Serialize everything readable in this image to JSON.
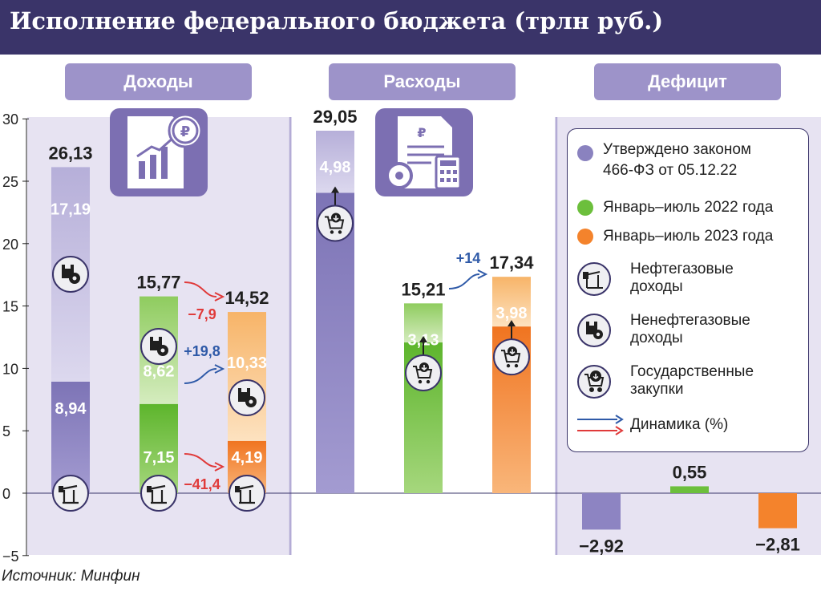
{
  "title": "Исполнение федерального бюджета (трлн руб.)",
  "sections": [
    {
      "label": "Доходы",
      "icon": "revenue-chart-icon"
    },
    {
      "label": "Расходы",
      "icon": "budget-calculator-icon"
    },
    {
      "label": "Дефицит"
    }
  ],
  "legend": {
    "law": "Утверждено законом 466-ФЗ от 05.12.22",
    "law_line1": "Утверждено законом",
    "law_line2": "466-ФЗ от 05.12.22",
    "y2022": "Январь–июль 2022 года",
    "y2023": "Январь–июль 2023 года",
    "oil_gas_line1": "Нефтегазовые",
    "oil_gas_line2": "доходы",
    "non_oil_line1": "Ненефтегазовые",
    "non_oil_line2": "доходы",
    "procurement_line1": "Государственные",
    "procurement_line2": "закупки",
    "dynamics": "Динамика (%)"
  },
  "source": "Источник: Минфин",
  "colors": {
    "law_dark": "#8a82bf",
    "law_light": "#c9c3e3",
    "g2022_dark": "#6cbf3c",
    "g2022_light": "#c4e3a5",
    "o2023_dark": "#f4832c",
    "o2023_light": "#f9c78e",
    "band": "#e7e3f2",
    "navy": "#3a3469",
    "arrow_up": "#2f5aa8",
    "arrow_down": "#e03a3a"
  },
  "chart_data": {
    "type": "bar",
    "y_axis": {
      "min": -5,
      "max": 30,
      "ticks": [
        30,
        25,
        20,
        15,
        10,
        5,
        0,
        -5
      ]
    },
    "groups": [
      {
        "name": "Доходы",
        "bars": [
          {
            "series": "law",
            "total": 26.13,
            "oil_gas": 8.94,
            "non_oil_gas": 17.19
          },
          {
            "series": "2022",
            "total": 15.77,
            "oil_gas": 7.15,
            "non_oil_gas": 8.62
          },
          {
            "series": "2023",
            "total": 14.52,
            "oil_gas": 4.19,
            "non_oil_gas": 10.33
          }
        ],
        "dynamics": [
          {
            "label": "−7,9",
            "direction": "down",
            "of": "total"
          },
          {
            "label": "+19,8",
            "direction": "up",
            "of": "non_oil_gas"
          },
          {
            "label": "−41,4",
            "direction": "down",
            "of": "oil_gas"
          }
        ]
      },
      {
        "name": "Расходы",
        "bars": [
          {
            "series": "law",
            "total": 29.05,
            "procurement": 4.98
          },
          {
            "series": "2022",
            "total": 15.21,
            "procurement": 3.13
          },
          {
            "series": "2023",
            "total": 17.34,
            "procurement": 3.98
          }
        ],
        "dynamics": [
          {
            "label": "+14",
            "direction": "up",
            "of": "total"
          }
        ]
      },
      {
        "name": "Дефицит",
        "bars": [
          {
            "series": "law",
            "value": -2.92
          },
          {
            "series": "2022",
            "value": 0.55
          },
          {
            "series": "2023",
            "value": -2.81
          }
        ]
      }
    ],
    "labels": {
      "rev_law_total": "26,13",
      "rev_law_oil": "8,94",
      "rev_law_non": "17,19",
      "rev_22_total": "15,77",
      "rev_22_oil": "7,15",
      "rev_22_non": "8,62",
      "rev_23_total": "14,52",
      "rev_23_oil": "4,19",
      "rev_23_non": "10,33",
      "exp_law_total": "29,05",
      "exp_law_proc": "4,98",
      "exp_22_total": "15,21",
      "exp_22_proc": "3,13",
      "exp_23_total": "17,34",
      "exp_23_proc": "3,98",
      "def_law": "−2,92",
      "def_22": "0,55",
      "def_23": "−2,81"
    },
    "ytick_labels": [
      "30",
      "25",
      "20",
      "15",
      "10",
      "5",
      "0",
      "−5"
    ]
  }
}
